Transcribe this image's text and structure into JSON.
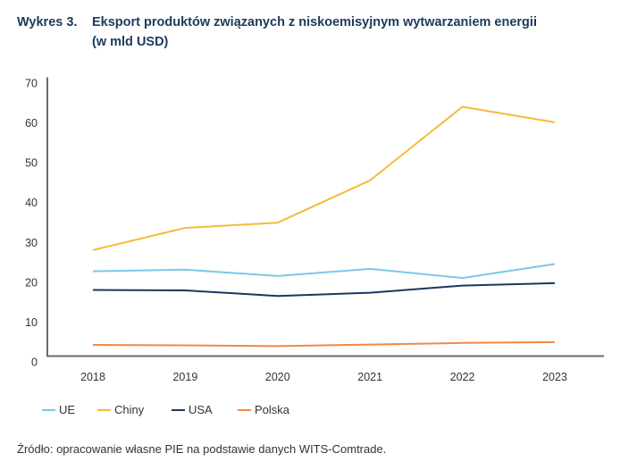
{
  "title": {
    "number": "Wykres 3.",
    "line1": "Eksport produktów związanych z niskoemisyjnym wytwarzaniem energii",
    "line2": "(w mld USD)"
  },
  "chart_data": {
    "type": "line",
    "title": "Eksport produktów związanych z niskoemisyjnym wytwarzaniem energii (w mld USD)",
    "xlabel": "",
    "ylabel": "",
    "x": [
      "2018",
      "2019",
      "2020",
      "2021",
      "2022",
      "2023"
    ],
    "ylim": [
      0,
      70
    ],
    "yticks": [
      0,
      10,
      20,
      30,
      40,
      50,
      60,
      70
    ],
    "grid": false,
    "legend": "bottom-left",
    "series": [
      {
        "name": "UE",
        "color": "#7cc7e8",
        "values": [
          21.3,
          21.7,
          20.1,
          21.9,
          19.6,
          23.1
        ]
      },
      {
        "name": "Chiny",
        "color": "#f2bb3c",
        "values": [
          26.6,
          32.2,
          33.5,
          44.1,
          62.6,
          58.7
        ]
      },
      {
        "name": "USA",
        "color": "#17385c",
        "values": [
          16.6,
          16.5,
          15.1,
          15.9,
          17.7,
          18.3
        ]
      },
      {
        "name": "Polska",
        "color": "#ef8a45",
        "values": [
          2.8,
          2.7,
          2.5,
          2.9,
          3.3,
          3.5
        ]
      }
    ]
  },
  "legend": [
    {
      "label": "UE",
      "color": "#7cc7e8"
    },
    {
      "label": "Chiny",
      "color": "#f2bb3c"
    },
    {
      "label": "USA",
      "color": "#17385c"
    },
    {
      "label": "Polska",
      "color": "#ef8a45"
    }
  ],
  "source": "Źródło: opracowanie własne PIE na podstawie danych WITS-Comtrade."
}
